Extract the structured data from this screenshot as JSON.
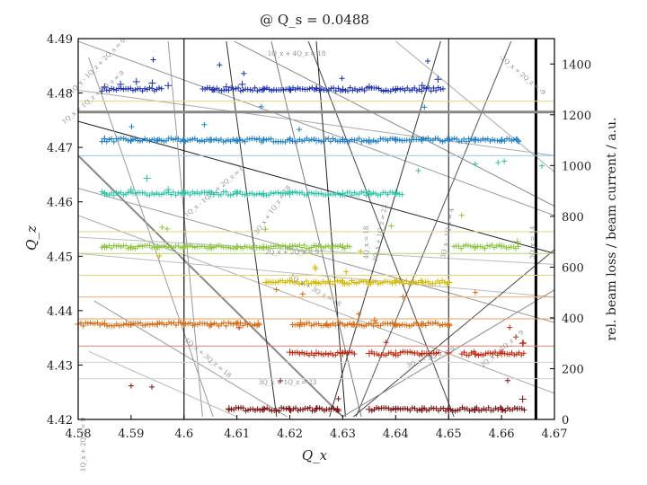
{
  "chart_data": {
    "type": "scatter",
    "title": "@ Q_s = 0.0488",
    "xlabel": "Q_x",
    "ylabel": "Q_z",
    "y2label": "rel. beam loss / beam current / a.u.",
    "xlim": [
      4.58,
      4.67
    ],
    "ylim": [
      4.42,
      4.49
    ],
    "y2lim": [
      0,
      1500
    ],
    "x_ticks": [
      "4.58",
      "4.59",
      "4.6",
      "4.61",
      "4.62",
      "4.63",
      "4.64",
      "4.65",
      "4.66",
      "4.67"
    ],
    "y_ticks": [
      "4.42",
      "4.43",
      "4.44",
      "4.45",
      "4.46",
      "4.47",
      "4.48",
      "4.49"
    ],
    "y2_ticks": [
      "0",
      "200",
      "400",
      "600",
      "800",
      "1000",
      "1200",
      "1400"
    ],
    "grid": false,
    "legend": "none",
    "series": [
      {
        "color": "#1a2fb0",
        "baseline": 1300,
        "x": [
          4.585,
          4.588,
          4.591,
          4.594,
          4.597,
          4.6055,
          4.608,
          4.611,
          4.615,
          4.62,
          4.625,
          4.63,
          4.635,
          4.64,
          4.645,
          4.648
        ],
        "y": [
          1310,
          1320,
          1330,
          1325,
          1315,
          1300,
          1310,
          1320,
          1300,
          1300,
          1305,
          1300,
          1310,
          1300,
          1315,
          1340
        ]
      },
      {
        "color": "#1f7fc4",
        "baseline": 1100,
        "x": [
          4.585,
          4.59,
          4.595,
          4.6,
          4.605,
          4.61,
          4.615,
          4.62,
          4.625,
          4.63,
          4.635,
          4.64,
          4.645,
          4.65,
          4.655,
          4.66,
          4.663
        ],
        "y": [
          1105,
          1100,
          1098,
          1100,
          1102,
          1100,
          1100,
          1100,
          1098,
          1102,
          1100,
          1100,
          1100,
          1100,
          1100,
          1100,
          1100
        ]
      },
      {
        "color": "#2fc4a8",
        "baseline": 890,
        "x": [
          4.585,
          4.59,
          4.593,
          4.597,
          4.6,
          4.605,
          4.61,
          4.615,
          4.62,
          4.625,
          4.63,
          4.635,
          4.64
        ],
        "y": [
          890,
          905,
          950,
          905,
          890,
          888,
          890,
          890,
          888,
          890,
          890,
          890,
          892
        ]
      },
      {
        "color": "#8cc63f",
        "baseline": 680,
        "x": [
          4.585,
          4.59,
          4.595,
          4.6,
          4.605,
          4.61,
          4.615,
          4.62,
          4.625,
          4.63,
          4.655,
          4.66,
          4.663
        ],
        "y": [
          680,
          680,
          678,
          680,
          682,
          680,
          680,
          680,
          680,
          680,
          680,
          682,
          700
        ]
      },
      {
        "color": "#d4b800",
        "baseline": 540,
        "x": [
          4.6155,
          4.62,
          4.625,
          4.63,
          4.635,
          4.64,
          4.645,
          4.65
        ],
        "y": [
          540,
          545,
          540,
          538,
          540,
          540,
          540,
          540
        ]
      },
      {
        "color": "#d96a10",
        "baseline": 375,
        "x": [
          4.58,
          4.585,
          4.59,
          4.595,
          4.6,
          4.605,
          4.61,
          4.614,
          4.622,
          4.627,
          4.632,
          4.636,
          4.64,
          4.645,
          4.65
        ],
        "y": [
          375,
          378,
          375,
          376,
          375,
          375,
          376,
          378,
          380,
          376,
          375,
          390,
          376,
          375,
          375
        ]
      },
      {
        "color": "#c42810",
        "baseline": 260,
        "x": [
          4.62,
          4.625,
          4.63,
          4.635,
          4.64,
          4.645,
          4.65,
          4.655,
          4.66,
          4.664
        ],
        "y": [
          265,
          262,
          260,
          260,
          262,
          260,
          262,
          258,
          260,
          300
        ]
      },
      {
        "color": "#7a1010",
        "baseline": 40,
        "x": [
          4.6085,
          4.615,
          4.62,
          4.625,
          4.629,
          4.635,
          4.64,
          4.645,
          4.65,
          4.655,
          4.66,
          4.664
        ],
        "y": [
          42,
          40,
          40,
          42,
          40,
          40,
          40,
          42,
          40,
          40,
          40,
          80
        ]
      }
    ],
    "resonance_labels": [
      "1Q_x + 2Q_z = 9",
      "1Q_x + 4Q_z = 18",
      "-2Q_x + 2Q_z = -9",
      "1Q_x - 1Q_z + 2Q_s = 0",
      "1Q_x + 1Q_z + 2Q_s = 9",
      "1Q_x - 1Q_z + 2Q_s = 0",
      "3Q_x = 14",
      "4Q_x = 18",
      "3Q_x + 1Q_z = 18",
      "2Q_x + 2Q_z = 9",
      "1Q_x + 3Q_z = 18",
      "3Q_x + 1Q_z = 23",
      "3Q_x - 1Q_z = 4",
      "1Q_x + 3Q_z = 18",
      "3Q_x + 1Q_z = 23",
      "3Q_x - 1Q_z = 9",
      "2Q_x + 2Q_z = 9"
    ]
  }
}
